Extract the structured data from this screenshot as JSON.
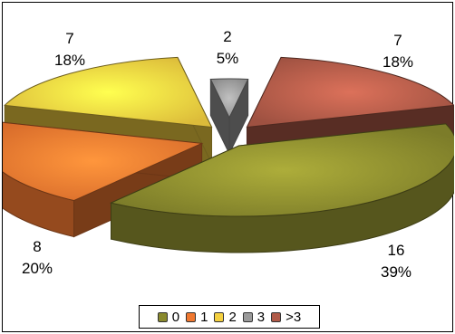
{
  "chart_data": {
    "type": "pie",
    "title": "",
    "categories": [
      "0",
      "1",
      "2",
      "3",
      ">3"
    ],
    "values": [
      16,
      8,
      7,
      2,
      7
    ],
    "percent_labels": [
      "39%",
      "20%",
      "18%",
      "5%",
      "18%"
    ],
    "value_labels": [
      "16",
      "8",
      "7",
      "2",
      "7"
    ],
    "colors": [
      "#8a8a2e",
      "#f07830",
      "#f4d040",
      "#9a9a9a",
      "#b05a48"
    ],
    "style": "3d-exploded",
    "legend_position": "bottom"
  },
  "legend": {
    "items": [
      {
        "label": "0",
        "color": "#8a8a2e"
      },
      {
        "label": "1",
        "color": "#f07830"
      },
      {
        "label": "2",
        "color": "#f4d040"
      },
      {
        "label": "3",
        "color": "#9a9a9a"
      },
      {
        "label": ">3",
        "color": "#b05a48"
      }
    ]
  }
}
